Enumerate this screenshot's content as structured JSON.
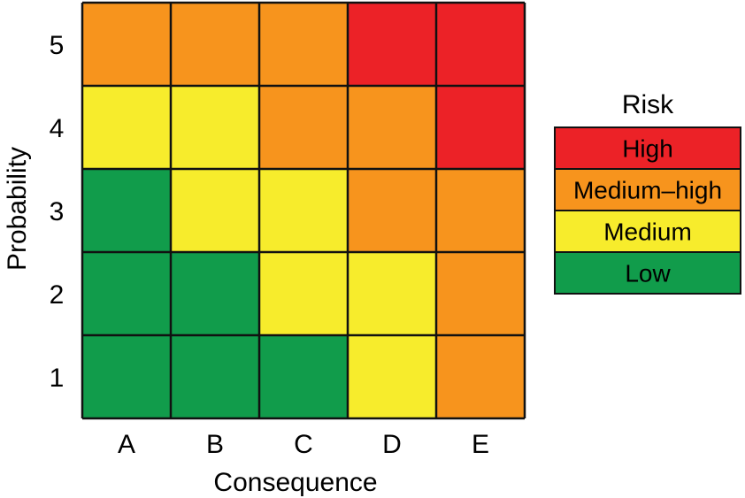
{
  "chart_data": {
    "type": "heatmap",
    "title": "",
    "xlabel": "Consequence",
    "ylabel": "Probability",
    "x_categories": [
      "A",
      "B",
      "C",
      "D",
      "E"
    ],
    "y_categories": [
      "1",
      "2",
      "3",
      "4",
      "5"
    ],
    "cells": [
      [
        "Low",
        "Low",
        "Low",
        "Medium",
        "Medium–high"
      ],
      [
        "Low",
        "Low",
        "Medium",
        "Medium",
        "Medium–high"
      ],
      [
        "Low",
        "Medium",
        "Medium",
        "Medium–high",
        "Medium–high"
      ],
      [
        "Medium",
        "Medium",
        "Medium–high",
        "Medium–high",
        "High"
      ],
      [
        "Medium–high",
        "Medium–high",
        "Medium–high",
        "High",
        "High"
      ]
    ],
    "legend": {
      "title": "Risk",
      "placement": "right",
      "items": [
        {
          "label": "High",
          "color": "#ec2227"
        },
        {
          "label": "Medium–high",
          "color": "#f7941d"
        },
        {
          "label": "Medium",
          "color": "#f7ec2c"
        },
        {
          "label": "Low",
          "color": "#119c4b"
        }
      ]
    },
    "grid": true
  }
}
